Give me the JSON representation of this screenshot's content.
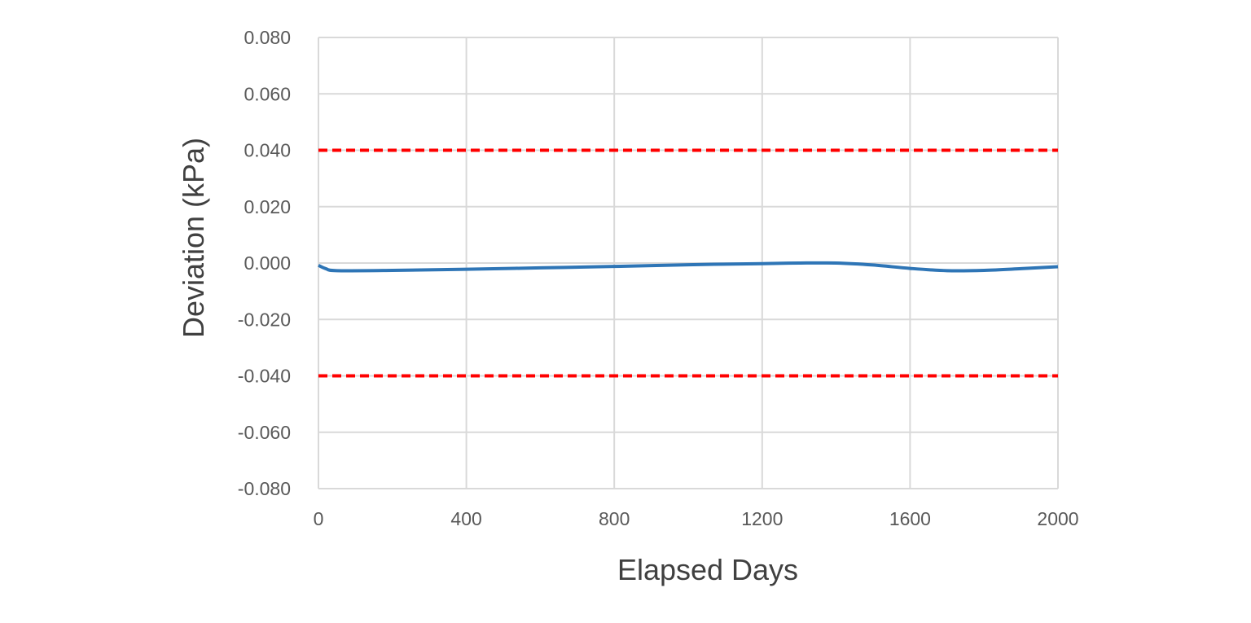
{
  "chart_data": {
    "type": "line",
    "title": "",
    "xlabel": "Elapsed Days",
    "ylabel": "Deviation (kPa)",
    "xlim": [
      0,
      2000
    ],
    "ylim": [
      -0.08,
      0.08
    ],
    "x_ticks": [
      0,
      400,
      800,
      1200,
      1600,
      2000
    ],
    "x_tick_labels": [
      "0",
      "400",
      "800",
      "1200",
      "1600",
      "2000"
    ],
    "y_ticks": [
      0.08,
      0.06,
      0.04,
      0.02,
      0.0,
      -0.02,
      -0.04,
      -0.06,
      -0.08
    ],
    "y_tick_labels": [
      "0.080",
      "0.060",
      "0.040",
      "0.020",
      "0.000",
      "-0.020",
      "-0.040",
      "-0.060",
      "-0.080"
    ],
    "grid": true,
    "legend": "none",
    "series": [
      {
        "color": "#2e75b6",
        "style": "solid",
        "x": [
          0,
          20,
          50,
          200,
          400,
          600,
          800,
          1000,
          1200,
          1300,
          1400,
          1500,
          1600,
          1700,
          1800,
          1900,
          2000
        ],
        "y": [
          -0.0008,
          -0.002,
          -0.0027,
          -0.0026,
          -0.0022,
          -0.0017,
          -0.0012,
          -0.0006,
          -0.0002,
          0.0,
          0.0,
          -0.0007,
          -0.0019,
          -0.0027,
          -0.0026,
          -0.002,
          -0.0013
        ]
      },
      {
        "color": "#ff0000",
        "style": "dashed",
        "x": [
          0,
          2000
        ],
        "y": [
          0.04,
          0.04
        ]
      },
      {
        "color": "#ff0000",
        "style": "dashed",
        "x": [
          0,
          2000
        ],
        "y": [
          -0.04,
          -0.04
        ]
      }
    ]
  }
}
